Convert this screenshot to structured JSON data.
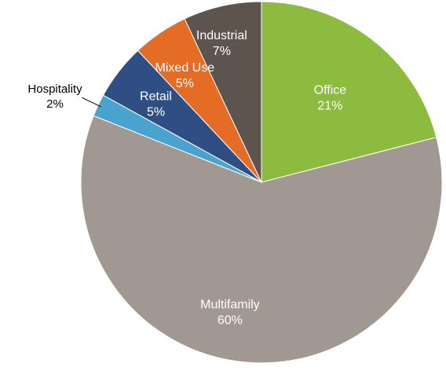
{
  "chart_data": {
    "type": "pie",
    "slices": [
      {
        "label": "Office",
        "value": 21,
        "value_label": "21%",
        "color": "#8dbb3f",
        "label_color": "#ffffff",
        "label_position": "inside"
      },
      {
        "label": "Multifamily",
        "value": 60,
        "value_label": "60%",
        "color": "#a19892",
        "label_color": "#ffffff",
        "label_position": "inside"
      },
      {
        "label": "Hospitality",
        "value": 2,
        "value_label": "2%",
        "color": "#4aa3cf",
        "label_color": "#000000",
        "label_position": "outside"
      },
      {
        "label": "Retail",
        "value": 5,
        "value_label": "5%",
        "color": "#2f4f84",
        "label_color": "#ffffff",
        "label_position": "inside"
      },
      {
        "label": "Mixed Use",
        "value": 5,
        "value_label": "5%",
        "color": "#e46c25",
        "label_color": "#ffffff",
        "label_position": "inside"
      },
      {
        "label": "Industrial",
        "value": 7,
        "value_label": "7%",
        "color": "#5e544e",
        "label_color": "#ffffff",
        "label_position": "inside"
      }
    ],
    "start_angle": "12 o'clock",
    "direction": "clockwise",
    "slice_border_color": "#ffffff",
    "legend": "none"
  }
}
